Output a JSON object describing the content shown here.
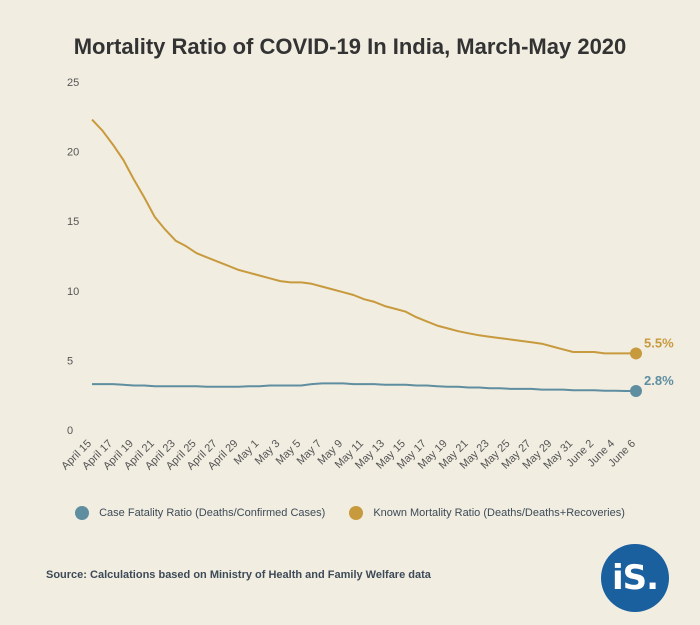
{
  "title": "Mortality Ratio of COVID-19 In India, March-May 2020",
  "source": "Source: Calculations based on Ministry of Health and Family Welfare data",
  "logo_text": "iS.",
  "colors": {
    "background": "#f1ede1",
    "series_blue": "#5f8ea0",
    "series_gold": "#c89a3e",
    "axis_text": "#555555",
    "logo": "#1a5f9e"
  },
  "chart_data": {
    "type": "line",
    "title": "Mortality Ratio of COVID-19 In India, March-May 2020",
    "xlabel": "",
    "ylabel": "",
    "ylim": [
      0,
      25
    ],
    "yticks": [
      0,
      5,
      10,
      15,
      20,
      25
    ],
    "grid": false,
    "legend_position": "bottom",
    "x": [
      "April 15",
      "April 16",
      "April 17",
      "April 18",
      "April 19",
      "April 20",
      "April 21",
      "April 22",
      "April 23",
      "April 24",
      "April 25",
      "April 26",
      "April 27",
      "April 28",
      "April 29",
      "April 30",
      "May 1",
      "May 2",
      "May 3",
      "May 4",
      "May 5",
      "May 6",
      "May 7",
      "May 8",
      "May 9",
      "May 10",
      "May 11",
      "May 12",
      "May 13",
      "May 14",
      "May 15",
      "May 16",
      "May 17",
      "May 18",
      "May 19",
      "May 20",
      "May 21",
      "May 22",
      "May 23",
      "May 24",
      "May 25",
      "May 26",
      "May 27",
      "May 28",
      "May 29",
      "May 30",
      "May 31",
      "June 1",
      "June 2",
      "June 3",
      "June 4",
      "June 5",
      "June 6"
    ],
    "xtick_labels": [
      "April 15",
      "April 17",
      "April 19",
      "April 21",
      "April 23",
      "April 25",
      "April 27",
      "April 29",
      "May 1",
      "May 3",
      "May 5",
      "May 7",
      "May 9",
      "May 11",
      "May 13",
      "May 15",
      "May 17",
      "May 19",
      "May 21",
      "May 23",
      "May 25",
      "May 27",
      "May 29",
      "May 31",
      "June 2",
      "June 4",
      "June 6"
    ],
    "series": [
      {
        "name": "Case Fatality Ratio (Deaths/Confirmed Cases)",
        "color": "#5f8ea0",
        "end_label": "2.8%",
        "values": [
          3.3,
          3.3,
          3.3,
          3.25,
          3.2,
          3.2,
          3.15,
          3.15,
          3.15,
          3.15,
          3.15,
          3.1,
          3.1,
          3.1,
          3.1,
          3.15,
          3.15,
          3.2,
          3.2,
          3.2,
          3.2,
          3.3,
          3.35,
          3.35,
          3.35,
          3.3,
          3.3,
          3.3,
          3.25,
          3.25,
          3.25,
          3.2,
          3.2,
          3.15,
          3.1,
          3.1,
          3.05,
          3.05,
          3.0,
          3.0,
          2.95,
          2.95,
          2.95,
          2.9,
          2.9,
          2.9,
          2.85,
          2.85,
          2.85,
          2.82,
          2.82,
          2.8,
          2.8
        ]
      },
      {
        "name": "Known Mortality Ratio (Deaths/Deaths+Recoveries)",
        "color": "#c89a3e",
        "end_label": "5.5%",
        "values": [
          22.3,
          21.5,
          20.5,
          19.4,
          18.0,
          16.7,
          15.3,
          14.4,
          13.6,
          13.2,
          12.7,
          12.4,
          12.1,
          11.8,
          11.5,
          11.3,
          11.1,
          10.9,
          10.7,
          10.6,
          10.6,
          10.5,
          10.3,
          10.1,
          9.9,
          9.7,
          9.4,
          9.2,
          8.9,
          8.7,
          8.5,
          8.1,
          7.8,
          7.5,
          7.3,
          7.1,
          6.95,
          6.8,
          6.7,
          6.6,
          6.5,
          6.4,
          6.3,
          6.2,
          6.0,
          5.8,
          5.6,
          5.6,
          5.6,
          5.5,
          5.5,
          5.5,
          5.5
        ]
      }
    ]
  }
}
